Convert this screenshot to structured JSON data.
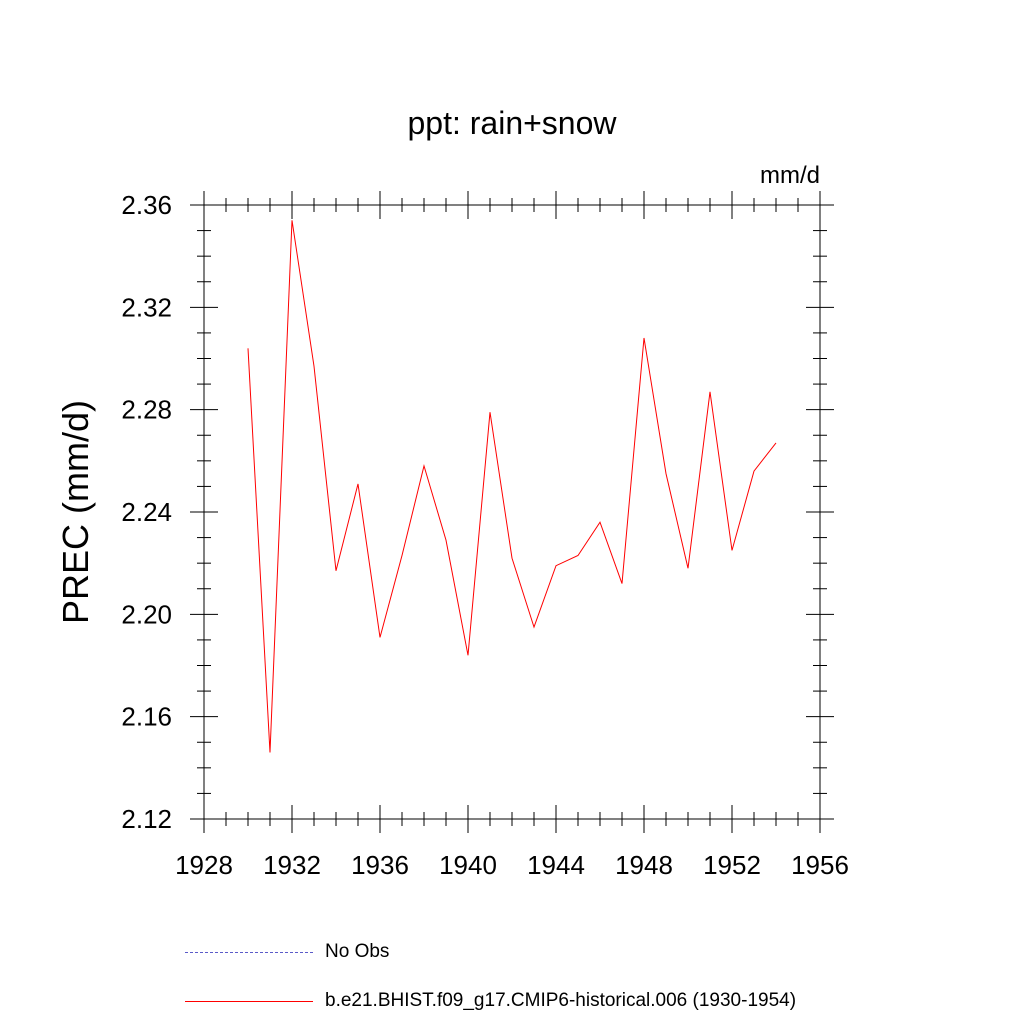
{
  "chart_data": {
    "type": "line",
    "title": "ppt: rain+snow",
    "units": "mm/d",
    "ylabel": "PREC  (mm/d)",
    "xlabel": "",
    "xlim": [
      1928,
      1956
    ],
    "ylim": [
      2.12,
      2.36
    ],
    "xticks": [
      1928,
      1932,
      1936,
      1940,
      1944,
      1948,
      1952,
      1956
    ],
    "xtick_labels": [
      "1928",
      "1932",
      "1936",
      "1940",
      "1944",
      "1948",
      "1952",
      "1956"
    ],
    "yticks": [
      2.12,
      2.16,
      2.2,
      2.24,
      2.28,
      2.32,
      2.36
    ],
    "ytick_labels": [
      "2.12",
      "2.16",
      "2.20",
      "2.24",
      "2.28",
      "2.32",
      "2.36"
    ],
    "series": [
      {
        "name": "b.e21.BHIST.f09_g17.CMIP6-historical.006 (1930-1954)",
        "color": "#ff0000",
        "x": [
          1930,
          1931,
          1932,
          1933,
          1934,
          1935,
          1936,
          1937,
          1938,
          1939,
          1940,
          1941,
          1942,
          1943,
          1944,
          1945,
          1946,
          1947,
          1948,
          1949,
          1950,
          1951,
          1952,
          1953,
          1954
        ],
        "values": [
          2.304,
          2.146,
          2.354,
          2.297,
          2.217,
          2.251,
          2.191,
          2.223,
          2.258,
          2.229,
          2.184,
          2.279,
          2.222,
          2.195,
          2.219,
          2.223,
          2.236,
          2.212,
          2.308,
          2.255,
          2.218,
          2.287,
          2.225,
          2.256,
          2.267
        ]
      }
    ],
    "legend": [
      {
        "label": "No Obs",
        "style": "dashed",
        "color": "#5a5ac8"
      },
      {
        "label": "b.e21.BHIST.f09_g17.CMIP6-historical.006 (1930-1954)",
        "style": "solid",
        "color": "#ff0000"
      }
    ]
  }
}
